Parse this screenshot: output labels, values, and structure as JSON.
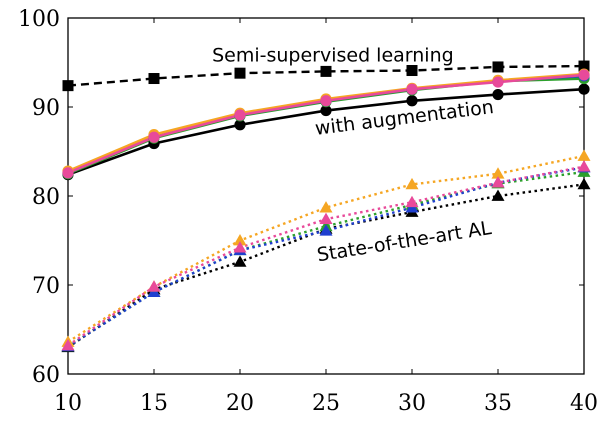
{
  "chart_data": {
    "type": "line",
    "x": [
      10,
      15,
      20,
      25,
      30,
      35,
      40
    ],
    "xlim": [
      10,
      40
    ],
    "ylim": [
      60,
      100
    ],
    "xticks": [
      "10",
      "15",
      "20",
      "25",
      "30",
      "35",
      "40"
    ],
    "yticks": [
      "60",
      "70",
      "80",
      "90",
      "100"
    ],
    "grid": false,
    "legend": "none",
    "annotations": [
      {
        "text": "Semi-supervised learning",
        "x": 25.4,
        "y": 95.1,
        "angle": 0
      },
      {
        "text": "with augmentation",
        "x": 29.6,
        "y": 88.1,
        "angle": -7
      },
      {
        "text": "State-of-the-art AL",
        "x": 29.6,
        "y": 74.2,
        "angle": -9
      }
    ],
    "series": [
      {
        "values": [
          92.4,
          93.2,
          93.8,
          94.0,
          94.1,
          94.5,
          94.6
        ],
        "color": "#000000",
        "style": "dashed",
        "marker": "square"
      },
      {
        "values": [
          82.4,
          85.9,
          88.0,
          89.6,
          90.7,
          91.4,
          92.0
        ],
        "color": "#000000",
        "style": "solid",
        "marker": "circle"
      },
      {
        "values": [
          82.5,
          86.5,
          89.0,
          90.6,
          91.9,
          92.9,
          93.2
        ],
        "color": "#2ca02c",
        "style": "solid",
        "marker": "circle"
      },
      {
        "values": [
          82.6,
          86.7,
          89.1,
          90.7,
          92.0,
          92.9,
          93.5
        ],
        "color": "#1f3fcf",
        "style": "solid",
        "marker": "circle"
      },
      {
        "values": [
          82.8,
          86.9,
          89.3,
          90.9,
          92.1,
          93.0,
          93.7
        ],
        "color": "#f5a623",
        "style": "solid",
        "marker": "circle"
      },
      {
        "values": [
          82.6,
          86.6,
          89.1,
          90.7,
          92.0,
          92.8,
          93.6
        ],
        "color": "#e84a9a",
        "style": "solid",
        "marker": "circle"
      },
      {
        "values": [
          63.0,
          69.5,
          72.6,
          76.3,
          78.2,
          80.0,
          81.3
        ],
        "color": "#000000",
        "style": "dotted",
        "marker": "triangle"
      },
      {
        "values": [
          63.1,
          69.2,
          73.9,
          76.6,
          79.0,
          81.4,
          82.7
        ],
        "color": "#2ca02c",
        "style": "dotted",
        "marker": "triangle"
      },
      {
        "values": [
          63.1,
          69.2,
          73.9,
          76.1,
          78.7,
          81.5,
          83.2
        ],
        "color": "#1f3fcf",
        "style": "dotted",
        "marker": "triangle"
      },
      {
        "values": [
          63.6,
          69.8,
          75.0,
          78.7,
          81.3,
          82.5,
          84.5
        ],
        "color": "#f5a623",
        "style": "dotted",
        "marker": "triangle"
      },
      {
        "values": [
          63.2,
          69.8,
          74.2,
          77.4,
          79.3,
          81.5,
          83.3
        ],
        "color": "#e84a9a",
        "style": "dotted",
        "marker": "triangle"
      }
    ]
  }
}
